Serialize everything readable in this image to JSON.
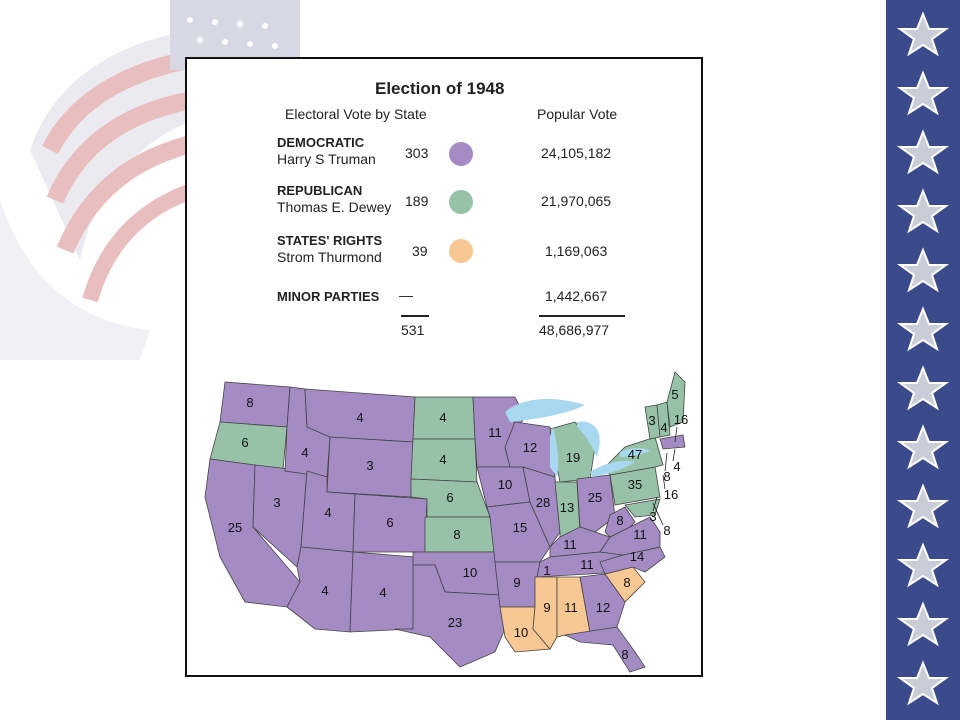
{
  "colors": {
    "democratic": "#a48bc4",
    "republican": "#97c2a8",
    "states_rights": "#f7c893",
    "lakes": "#a8d8ef",
    "strip": "#3b4a8a"
  },
  "legend": {
    "title": "Election of 1948",
    "col_electoral": "Electoral Vote by State",
    "col_popular": "Popular Vote",
    "parties": [
      {
        "party": "DEMOCRATIC",
        "candidate": "Harry S Truman",
        "electoral": "303",
        "popular": "24,105,182"
      },
      {
        "party": "REPUBLICAN",
        "candidate": "Thomas E. Dewey",
        "electoral": "189",
        "popular": "21,970,065"
      },
      {
        "party": "STATES' RIGHTS",
        "candidate": "Strom Thurmond",
        "electoral": "39",
        "popular": "1,169,063"
      },
      {
        "party": "MINOR PARTIES",
        "candidate": "",
        "electoral": "—",
        "popular": "1,442,667"
      }
    ],
    "total_electoral": "531",
    "total_popular": "48,686,977"
  },
  "map": {
    "state_votes": {
      "WA": "8",
      "OR": "6",
      "CA": "25",
      "NV": "3",
      "ID": "4",
      "MT": "4",
      "WY": "3",
      "UT": "4",
      "AZ": "4",
      "CO": "6",
      "NM": "4",
      "ND": "4",
      "SD": "4",
      "NE": "6",
      "KS": "8",
      "OK": "10",
      "TX": "23",
      "MN": "11",
      "IA": "10",
      "MO": "15",
      "AR": "9",
      "LA": "10",
      "WI": "12",
      "IL": "28",
      "MI": "19",
      "IN": "13",
      "OH": "25",
      "KY": "11",
      "TN": "11",
      "MS": "9",
      "AL": "11",
      "GA": "12",
      "FL": "8",
      "SC": "8",
      "NC": "14",
      "VA": "11",
      "WV": "8",
      "PA": "35",
      "NY": "47",
      "VT": "3",
      "NH": "4",
      "ME": "5",
      "MA": "16",
      "RI": "4",
      "CT": "8",
      "NJ": "16",
      "DE": "3",
      "MD": "8",
      "TN_split": "1"
    }
  }
}
